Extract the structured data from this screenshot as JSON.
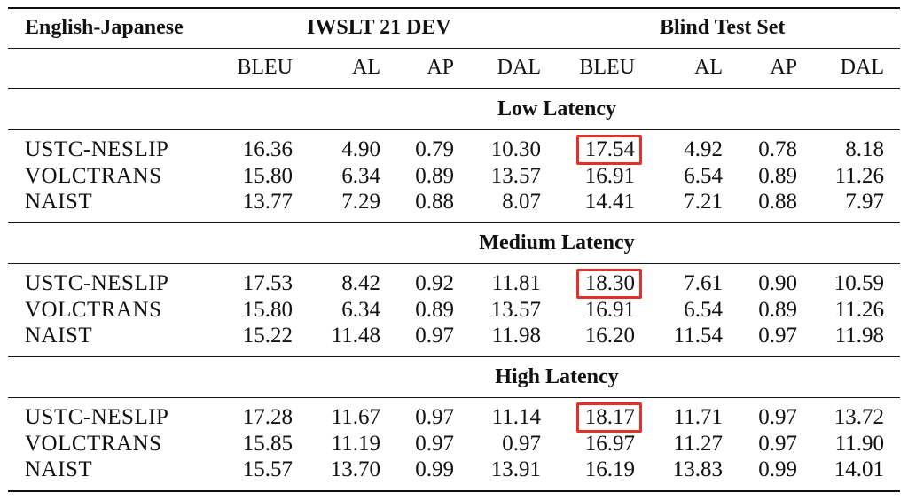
{
  "table": {
    "corner_label": "English-Japanese",
    "group_headers": [
      "IWSLT 21 DEV",
      "Blind Test Set"
    ],
    "metric_headers": [
      "BLEU",
      "AL",
      "AP",
      "DAL",
      "BLEU",
      "AL",
      "AP",
      "DAL"
    ],
    "sections": [
      {
        "title": "Low Latency",
        "rows": [
          {
            "system": "USTC-NESLIP",
            "values": [
              "16.36",
              "4.90",
              "0.79",
              "10.30",
              "17.54",
              "4.92",
              "0.78",
              "8.18"
            ],
            "highlight_col": 4
          },
          {
            "system": "VOLCTRANS",
            "values": [
              "15.80",
              "6.34",
              "0.89",
              "13.57",
              "16.91",
              "6.54",
              "0.89",
              "11.26"
            ]
          },
          {
            "system": "NAIST",
            "values": [
              "13.77",
              "7.29",
              "0.88",
              "8.07",
              "14.41",
              "7.21",
              "0.88",
              "7.97"
            ]
          }
        ]
      },
      {
        "title": "Medium Latency",
        "rows": [
          {
            "system": "USTC-NESLIP",
            "values": [
              "17.53",
              "8.42",
              "0.92",
              "11.81",
              "18.30",
              "7.61",
              "0.90",
              "10.59"
            ],
            "highlight_col": 4
          },
          {
            "system": "VOLCTRANS",
            "values": [
              "15.80",
              "6.34",
              "0.89",
              "13.57",
              "16.91",
              "6.54",
              "0.89",
              "11.26"
            ]
          },
          {
            "system": "NAIST",
            "values": [
              "15.22",
              "11.48",
              "0.97",
              "11.98",
              "16.20",
              "11.54",
              "0.97",
              "11.98"
            ]
          }
        ]
      },
      {
        "title": "High Latency",
        "rows": [
          {
            "system": "USTC-NESLIP",
            "values": [
              "17.28",
              "11.67",
              "0.97",
              "11.14",
              "18.17",
              "11.71",
              "0.97",
              "13.72"
            ],
            "highlight_col": 4
          },
          {
            "system": "VOLCTRANS",
            "values": [
              "15.85",
              "11.19",
              "0.97",
              "0.97",
              "16.97",
              "11.27",
              "0.97",
              "11.90"
            ]
          },
          {
            "system": "NAIST",
            "values": [
              "15.57",
              "13.70",
              "0.99",
              "13.91",
              "16.19",
              "13.83",
              "0.99",
              "14.01"
            ]
          }
        ]
      }
    ],
    "highlight_color": "#e0312b"
  }
}
